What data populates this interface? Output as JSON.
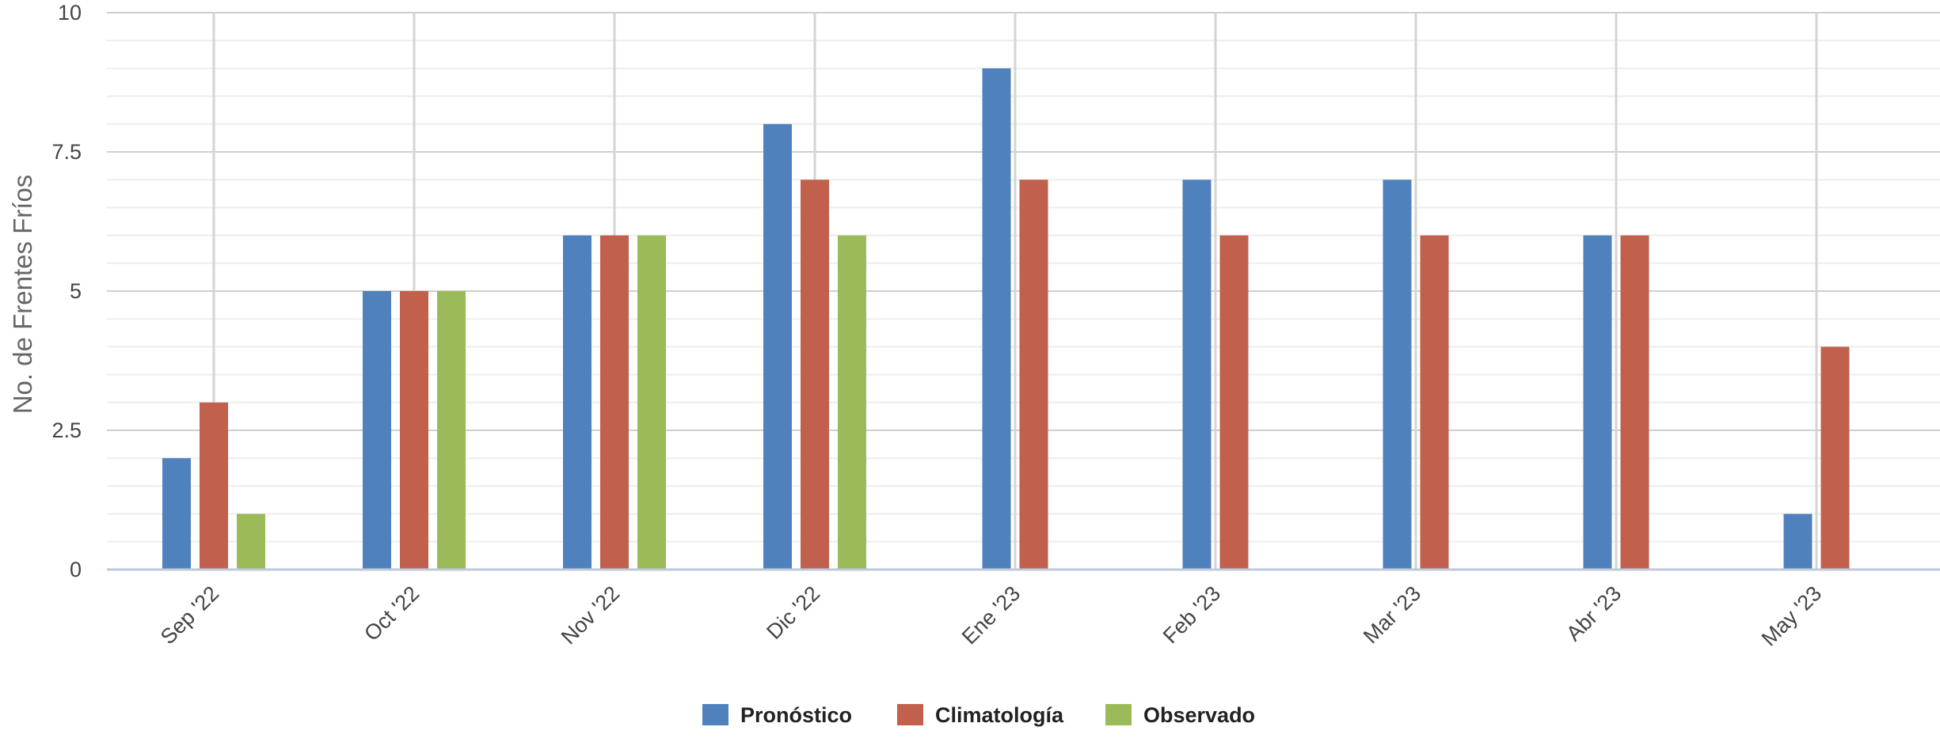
{
  "chart_data": {
    "type": "bar",
    "title": "",
    "xlabel": "",
    "ylabel": "No. de Frentes Fríos",
    "ylim": [
      0,
      10
    ],
    "y_ticks": [
      "0",
      "2.5",
      "5",
      "7.5",
      "10"
    ],
    "y_tick_values": [
      0,
      2.5,
      5,
      7.5,
      10
    ],
    "grid": true,
    "legend_position": "bottom-center",
    "categories": [
      "Sep '22",
      "Oct '22",
      "Nov '22",
      "Dic '22",
      "Ene '23",
      "Feb '23",
      "Mar '23",
      "Abr '23",
      "May '23"
    ],
    "series": [
      {
        "name": "Pronóstico",
        "color": "#4f81bd",
        "values": [
          2,
          5,
          6,
          8,
          9,
          7,
          7,
          6,
          1
        ]
      },
      {
        "name": "Climatología",
        "color": "#c0604d",
        "values": [
          3,
          5,
          6,
          7,
          7,
          6,
          6,
          6,
          4
        ]
      },
      {
        "name": "Observado",
        "color": "#9bbb59",
        "values": [
          1,
          5,
          6,
          6,
          null,
          null,
          null,
          null,
          null
        ]
      }
    ]
  }
}
